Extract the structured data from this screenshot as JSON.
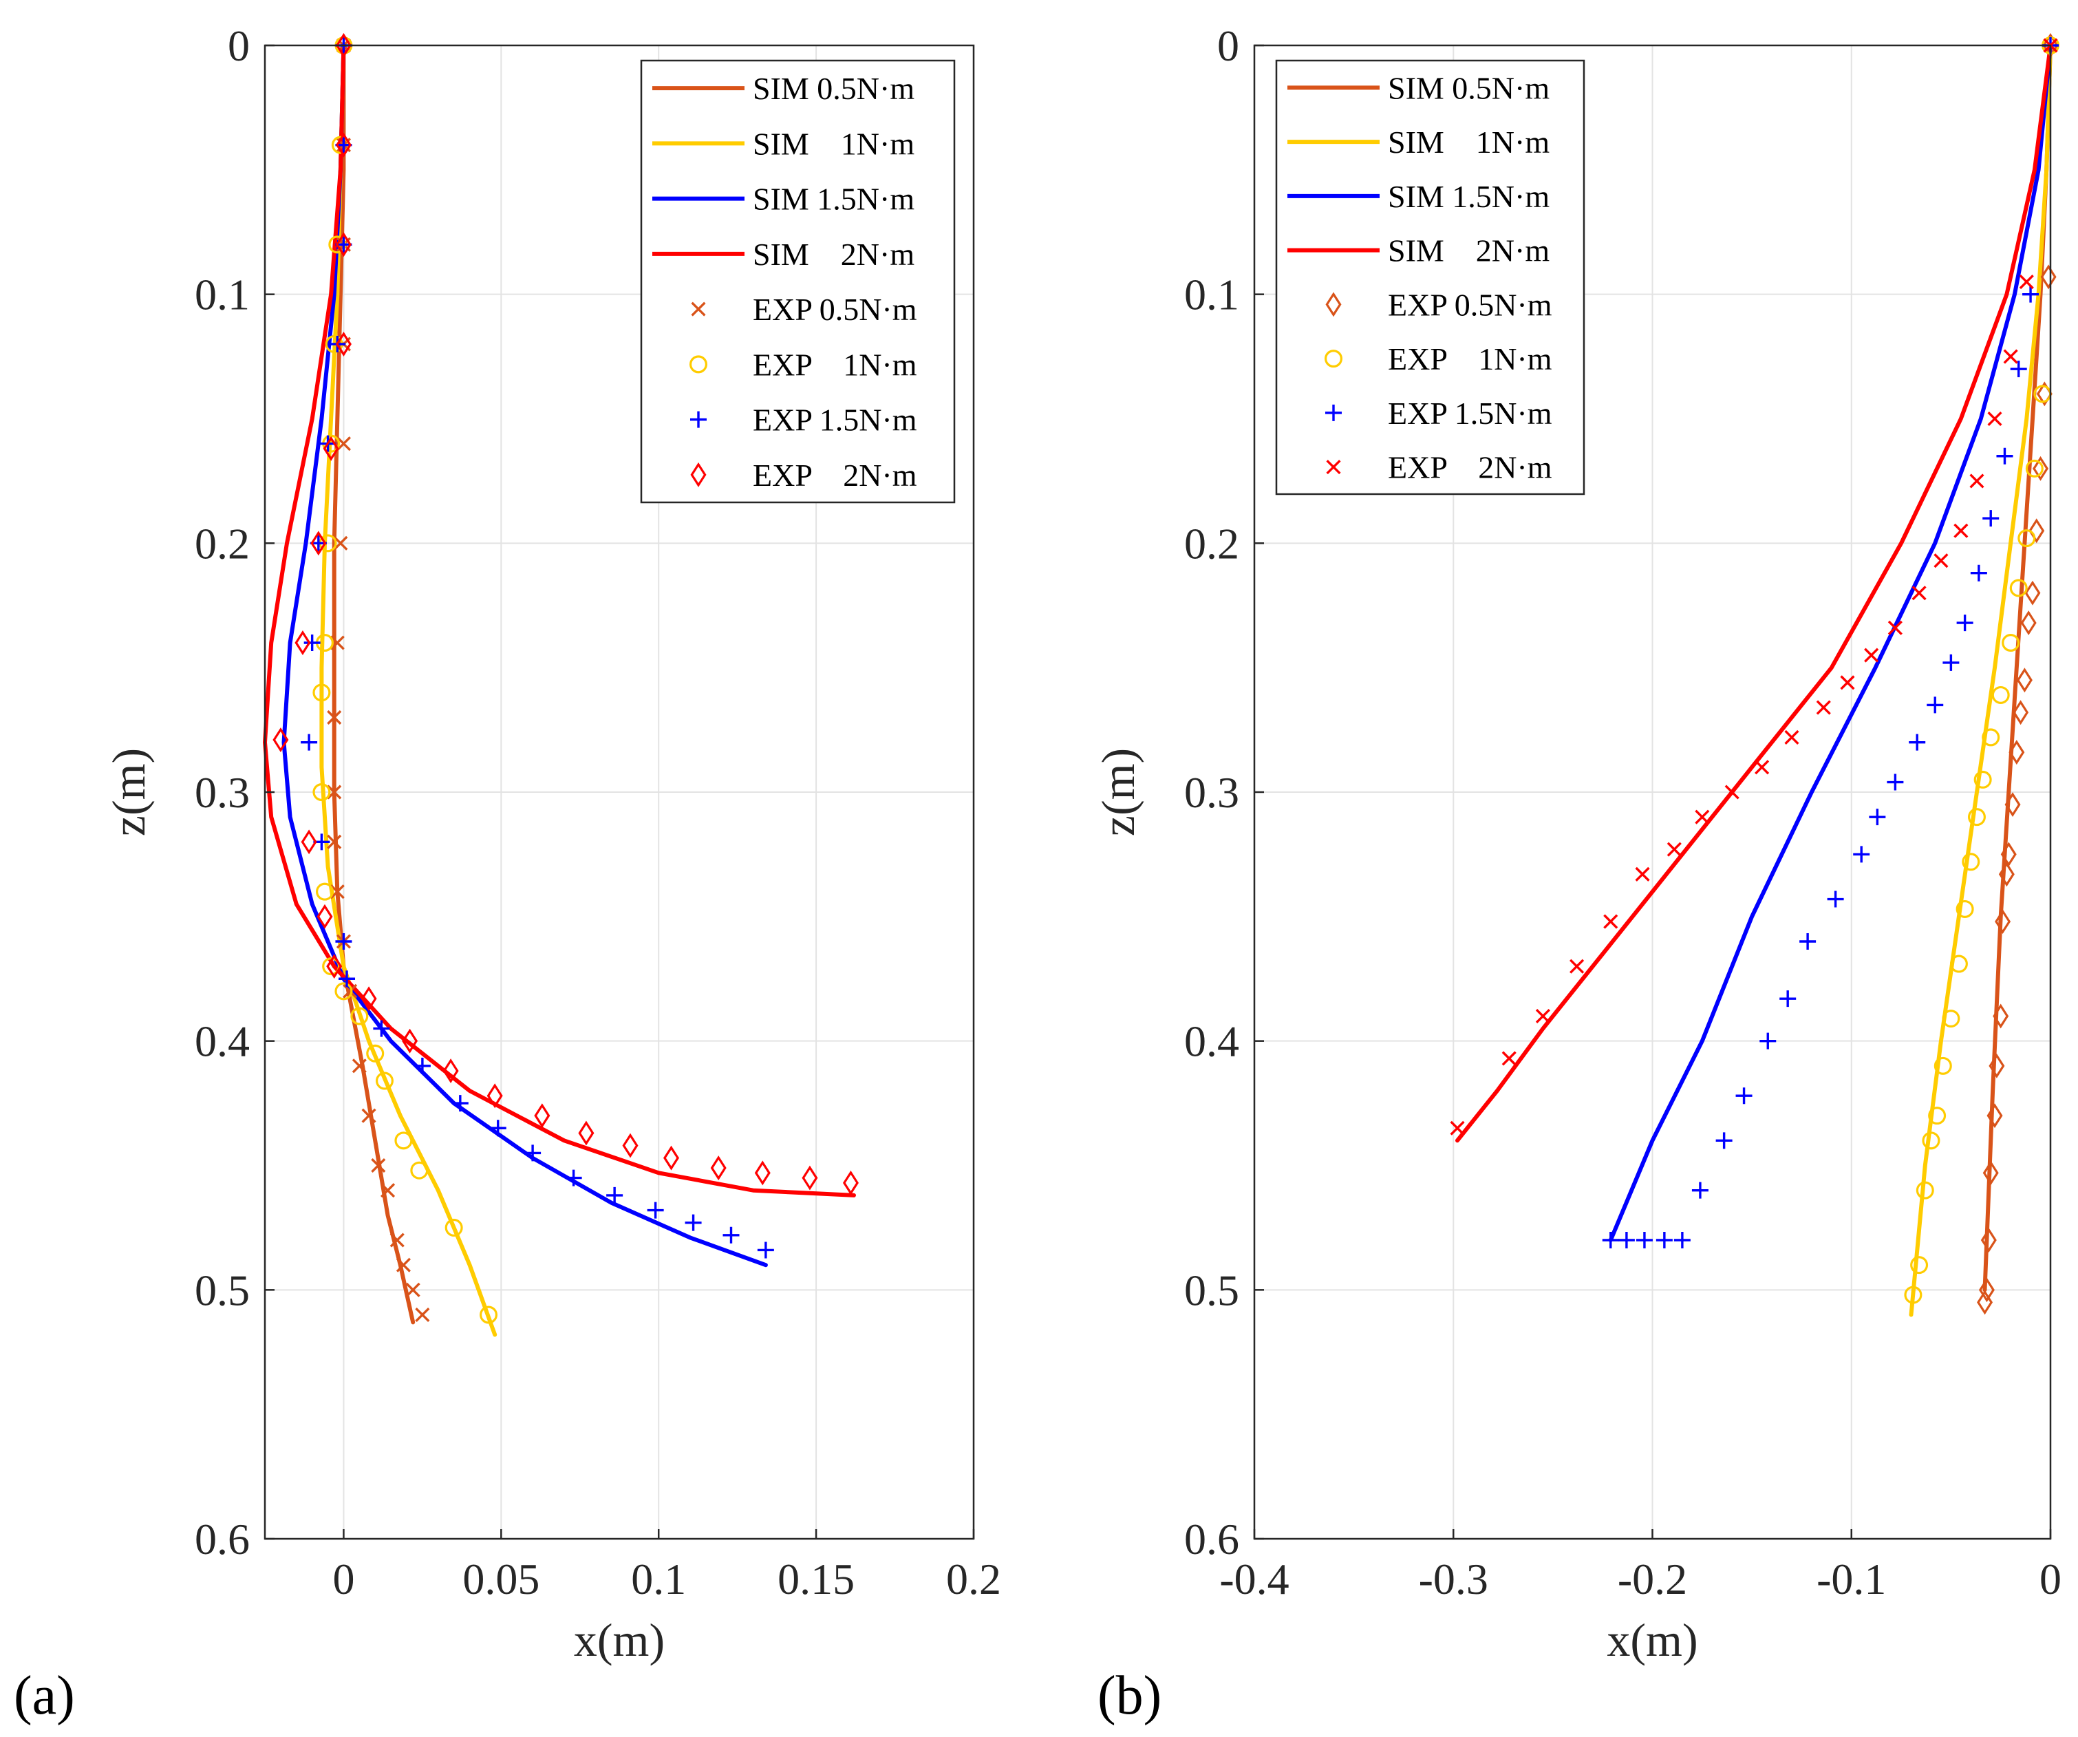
{
  "colors": {
    "series_0_5": "#D95319",
    "series_1": "#FFCC00",
    "series_1_5": "#0000FF",
    "series_2": "#FF0000"
  },
  "chart_data": [
    {
      "type": "line",
      "panel_label": "(a)",
      "xlabel": "x(m)",
      "ylabel": "z(m)",
      "xlim": [
        -0.025,
        0.2
      ],
      "ylim": [
        0.6,
        0
      ],
      "y_reversed": true,
      "grid": true,
      "legend_position": "top-right",
      "xticks": [
        0,
        0.05,
        0.1,
        0.15,
        0.2
      ],
      "xtick_labels": [
        "0",
        "0.05",
        "0.1",
        "0.15",
        "0.2"
      ],
      "yticks": [
        0,
        0.1,
        0.2,
        0.3,
        0.4,
        0.5,
        0.6
      ],
      "ytick_labels": [
        "0",
        "0.1",
        "0.2",
        "0.3",
        "0.4",
        "0.5",
        "0.6"
      ],
      "legend": [
        {
          "label": "SIM 0.5N·m",
          "kind": "line",
          "color": "#D95319"
        },
        {
          "label": "SIM    1N·m",
          "kind": "line",
          "color": "#FFCC00"
        },
        {
          "label": "SIM 1.5N·m",
          "kind": "line",
          "color": "#0000FF"
        },
        {
          "label": "SIM    2N·m",
          "kind": "line",
          "color": "#FF0000"
        },
        {
          "label": "EXP 0.5N·m",
          "kind": "x",
          "color": "#D95319"
        },
        {
          "label": "EXP    1N·m",
          "kind": "o",
          "color": "#FFCC00"
        },
        {
          "label": "EXP 1.5N·m",
          "kind": "+",
          "color": "#0000FF"
        },
        {
          "label": "EXP    2N·m",
          "kind": "d",
          "color": "#FF0000"
        }
      ],
      "series": [
        {
          "name": "SIM 0.5N·m",
          "kind": "line",
          "color": "#D95319",
          "x": [
            0,
            0,
            -0.001,
            -0.002,
            -0.003,
            -0.003,
            -0.003,
            -0.002,
            0,
            0.003,
            0.006,
            0.01,
            0.014,
            0.018,
            0.022
          ],
          "y": [
            0,
            0.05,
            0.1,
            0.15,
            0.2,
            0.25,
            0.3,
            0.34,
            0.37,
            0.39,
            0.41,
            0.44,
            0.47,
            0.49,
            0.513
          ]
        },
        {
          "name": "SIM    1N·m",
          "kind": "line",
          "color": "#FFCC00",
          "x": [
            0,
            -0.001,
            -0.002,
            -0.004,
            -0.006,
            -0.007,
            -0.007,
            -0.005,
            0,
            0.008,
            0.018,
            0.03,
            0.04,
            0.048
          ],
          "y": [
            0,
            0.05,
            0.1,
            0.15,
            0.2,
            0.25,
            0.29,
            0.33,
            0.37,
            0.4,
            0.43,
            0.46,
            0.49,
            0.518
          ]
        },
        {
          "name": "SIM 1.5N·m",
          "kind": "line",
          "color": "#0000FF",
          "x": [
            0,
            -0.001,
            -0.003,
            -0.007,
            -0.012,
            -0.017,
            -0.019,
            -0.017,
            -0.01,
            0,
            0.015,
            0.035,
            0.06,
            0.085,
            0.11,
            0.134
          ],
          "y": [
            0,
            0.05,
            0.1,
            0.15,
            0.2,
            0.24,
            0.28,
            0.31,
            0.345,
            0.375,
            0.4,
            0.425,
            0.447,
            0.465,
            0.479,
            0.49
          ]
        },
        {
          "name": "SIM    2N·m",
          "kind": "line",
          "color": "#FF0000",
          "x": [
            0,
            -0.001,
            -0.004,
            -0.01,
            -0.018,
            -0.023,
            -0.025,
            -0.023,
            -0.015,
            -0.003,
            0.015,
            0.04,
            0.07,
            0.1,
            0.13,
            0.162
          ],
          "y": [
            0,
            0.05,
            0.1,
            0.15,
            0.2,
            0.24,
            0.28,
            0.31,
            0.345,
            0.37,
            0.395,
            0.42,
            0.44,
            0.453,
            0.46,
            0.462
          ]
        },
        {
          "name": "EXP 0.5N·m",
          "kind": "x",
          "color": "#D95319",
          "x": [
            0,
            0,
            0,
            0,
            0,
            -0.001,
            -0.002,
            -0.003,
            -0.003,
            -0.003,
            -0.002,
            0,
            0.002,
            0.005,
            0.008,
            0.011,
            0.014,
            0.017,
            0.019,
            0.022,
            0.025
          ],
          "y": [
            0,
            0.04,
            0.08,
            0.12,
            0.16,
            0.2,
            0.24,
            0.27,
            0.3,
            0.32,
            0.34,
            0.36,
            0.38,
            0.41,
            0.43,
            0.45,
            0.46,
            0.48,
            0.49,
            0.5,
            0.51
          ]
        },
        {
          "name": "EXP    1N·m",
          "kind": "o",
          "color": "#FFCC00",
          "x": [
            0,
            -0.001,
            -0.002,
            -0.003,
            -0.004,
            -0.005,
            -0.006,
            -0.007,
            -0.007,
            -0.006,
            -0.004,
            0,
            0.005,
            0.01,
            0.013,
            0.019,
            0.024,
            0.035,
            0.046
          ],
          "y": [
            0,
            0.04,
            0.08,
            0.12,
            0.16,
            0.2,
            0.24,
            0.26,
            0.3,
            0.34,
            0.37,
            0.38,
            0.39,
            0.405,
            0.416,
            0.44,
            0.452,
            0.475,
            0.51
          ]
        },
        {
          "name": "EXP 1.5N·m",
          "kind": "+",
          "color": "#0000FF",
          "x": [
            0,
            0,
            0,
            -0.002,
            -0.005,
            -0.008,
            -0.01,
            -0.011,
            -0.007,
            0,
            0.001,
            0.012,
            0.025,
            0.037,
            0.049,
            0.06,
            0.073,
            0.086,
            0.099,
            0.111,
            0.123,
            0.134
          ],
          "y": [
            0,
            0.04,
            0.08,
            0.12,
            0.16,
            0.2,
            0.24,
            0.28,
            0.32,
            0.36,
            0.375,
            0.395,
            0.41,
            0.425,
            0.435,
            0.445,
            0.455,
            0.462,
            0.468,
            0.473,
            0.478,
            0.484
          ]
        },
        {
          "name": "EXP    2N·m",
          "kind": "d",
          "color": "#FF0000",
          "x": [
            0,
            0,
            0,
            0,
            -0.004,
            -0.008,
            -0.013,
            -0.02,
            -0.011,
            -0.006,
            -0.003,
            0.008,
            0.021,
            0.034,
            0.048,
            0.063,
            0.077,
            0.091,
            0.104,
            0.119,
            0.133,
            0.148,
            0.161
          ],
          "y": [
            0,
            0.04,
            0.08,
            0.12,
            0.162,
            0.2,
            0.24,
            0.279,
            0.32,
            0.35,
            0.37,
            0.383,
            0.4,
            0.412,
            0.422,
            0.43,
            0.437,
            0.442,
            0.447,
            0.451,
            0.453,
            0.455,
            0.457
          ]
        }
      ]
    },
    {
      "type": "line",
      "panel_label": "(b)",
      "xlabel": "x(m)",
      "ylabel": "z(m)",
      "xlim": [
        -0.4,
        0
      ],
      "ylim": [
        0.6,
        0
      ],
      "y_reversed": true,
      "grid": true,
      "legend_position": "top-left",
      "xticks": [
        -0.4,
        -0.3,
        -0.2,
        -0.1,
        0
      ],
      "xtick_labels": [
        "-0.4",
        "-0.3",
        "-0.2",
        "-0.1",
        "0"
      ],
      "yticks": [
        0,
        0.1,
        0.2,
        0.3,
        0.4,
        0.5,
        0.6
      ],
      "ytick_labels": [
        "0",
        "0.1",
        "0.2",
        "0.3",
        "0.4",
        "0.5",
        "0.6"
      ],
      "legend": [
        {
          "label": "SIM 0.5N·m",
          "kind": "line",
          "color": "#D95319"
        },
        {
          "label": "SIM    1N·m",
          "kind": "line",
          "color": "#FFCC00"
        },
        {
          "label": "SIM 1.5N·m",
          "kind": "line",
          "color": "#0000FF"
        },
        {
          "label": "SIM    2N·m",
          "kind": "line",
          "color": "#FF0000"
        },
        {
          "label": "EXP 0.5N·m",
          "kind": "d",
          "color": "#D95319"
        },
        {
          "label": "EXP    1N·m",
          "kind": "o",
          "color": "#FFCC00"
        },
        {
          "label": "EXP 1.5N·m",
          "kind": "+",
          "color": "#0000FF"
        },
        {
          "label": "EXP    2N·m",
          "kind": "x",
          "color": "#FF0000"
        }
      ],
      "series": [
        {
          "name": "SIM 0.5N·m",
          "kind": "line",
          "color": "#D95319",
          "x": [
            0,
            -0.002,
            -0.005,
            -0.009,
            -0.013,
            -0.017,
            -0.021,
            -0.025,
            -0.029,
            -0.033
          ],
          "y": [
            0,
            0.05,
            0.1,
            0.15,
            0.2,
            0.25,
            0.3,
            0.35,
            0.42,
            0.5
          ]
        },
        {
          "name": "SIM    1N·m",
          "kind": "line",
          "color": "#FFCC00",
          "x": [
            0,
            -0.002,
            -0.006,
            -0.012,
            -0.02,
            -0.028,
            -0.037,
            -0.046,
            -0.055,
            -0.063,
            -0.07
          ],
          "y": [
            0,
            0.05,
            0.1,
            0.15,
            0.2,
            0.25,
            0.3,
            0.35,
            0.4,
            0.45,
            0.51
          ]
        },
        {
          "name": "SIM 1.5N·m",
          "kind": "line",
          "color": "#0000FF",
          "x": [
            0,
            -0.006,
            -0.018,
            -0.035,
            -0.058,
            -0.088,
            -0.12,
            -0.15,
            -0.175,
            -0.2,
            -0.221
          ],
          "y": [
            0,
            0.05,
            0.1,
            0.15,
            0.2,
            0.25,
            0.3,
            0.35,
            0.4,
            0.44,
            0.48
          ]
        },
        {
          "name": "SIM    2N·m",
          "kind": "line",
          "color": "#FF0000",
          "x": [
            0,
            -0.008,
            -0.022,
            -0.045,
            -0.075,
            -0.11,
            -0.15,
            -0.19,
            -0.225,
            -0.255,
            -0.278,
            -0.298
          ],
          "y": [
            0,
            0.05,
            0.1,
            0.15,
            0.2,
            0.25,
            0.29,
            0.33,
            0.365,
            0.395,
            0.42,
            0.44
          ]
        },
        {
          "name": "EXP 0.5N·m",
          "kind": "d",
          "color": "#D95319",
          "x": [
            0,
            -0.001,
            -0.003,
            -0.005,
            -0.007,
            -0.009,
            -0.011,
            -0.013,
            -0.015,
            -0.017,
            -0.019,
            -0.021,
            -0.022,
            -0.024,
            -0.025,
            -0.027,
            -0.028,
            -0.03,
            -0.031,
            -0.032,
            -0.033
          ],
          "y": [
            0,
            0.093,
            0.14,
            0.17,
            0.195,
            0.22,
            0.232,
            0.255,
            0.268,
            0.284,
            0.305,
            0.325,
            0.333,
            0.352,
            0.39,
            0.41,
            0.43,
            0.453,
            0.48,
            0.5,
            0.505
          ]
        },
        {
          "name": "EXP    1N·m",
          "kind": "o",
          "color": "#FFCC00",
          "x": [
            0,
            -0.004,
            -0.008,
            -0.012,
            -0.016,
            -0.02,
            -0.025,
            -0.03,
            -0.034,
            -0.037,
            -0.04,
            -0.043,
            -0.046,
            -0.05,
            -0.054,
            -0.057,
            -0.06,
            -0.063,
            -0.066,
            -0.069
          ],
          "y": [
            0,
            0.14,
            0.17,
            0.198,
            0.218,
            0.24,
            0.261,
            0.278,
            0.295,
            0.31,
            0.328,
            0.347,
            0.369,
            0.391,
            0.41,
            0.43,
            0.44,
            0.46,
            0.49,
            0.502
          ]
        },
        {
          "name": "EXP 1.5N·m",
          "kind": "+",
          "color": "#0000FF",
          "x": [
            0,
            -0.01,
            -0.016,
            -0.023,
            -0.03,
            -0.036,
            -0.043,
            -0.05,
            -0.058,
            -0.067,
            -0.078,
            -0.087,
            -0.095,
            -0.108,
            -0.122,
            -0.132,
            -0.142,
            -0.154,
            -0.164,
            -0.176,
            -0.185,
            -0.194,
            -0.204,
            -0.213,
            -0.221
          ],
          "y": [
            0,
            0.1,
            0.13,
            0.165,
            0.19,
            0.212,
            0.232,
            0.248,
            0.265,
            0.28,
            0.296,
            0.31,
            0.325,
            0.343,
            0.36,
            0.383,
            0.4,
            0.422,
            0.44,
            0.46,
            0.48,
            0.48,
            0.48,
            0.48,
            0.48
          ]
        },
        {
          "name": "EXP    2N·m",
          "kind": "x",
          "color": "#FF0000",
          "x": [
            0,
            -0.012,
            -0.02,
            -0.028,
            -0.037,
            -0.045,
            -0.055,
            -0.066,
            -0.078,
            -0.09,
            -0.102,
            -0.114,
            -0.13,
            -0.145,
            -0.16,
            -0.175,
            -0.189,
            -0.205,
            -0.221,
            -0.238,
            -0.255,
            -0.272,
            -0.298
          ],
          "y": [
            0,
            0.095,
            0.125,
            0.15,
            0.175,
            0.195,
            0.207,
            0.22,
            0.234,
            0.245,
            0.256,
            0.266,
            0.278,
            0.29,
            0.3,
            0.31,
            0.323,
            0.333,
            0.352,
            0.37,
            0.39,
            0.407,
            0.435
          ]
        }
      ]
    }
  ]
}
